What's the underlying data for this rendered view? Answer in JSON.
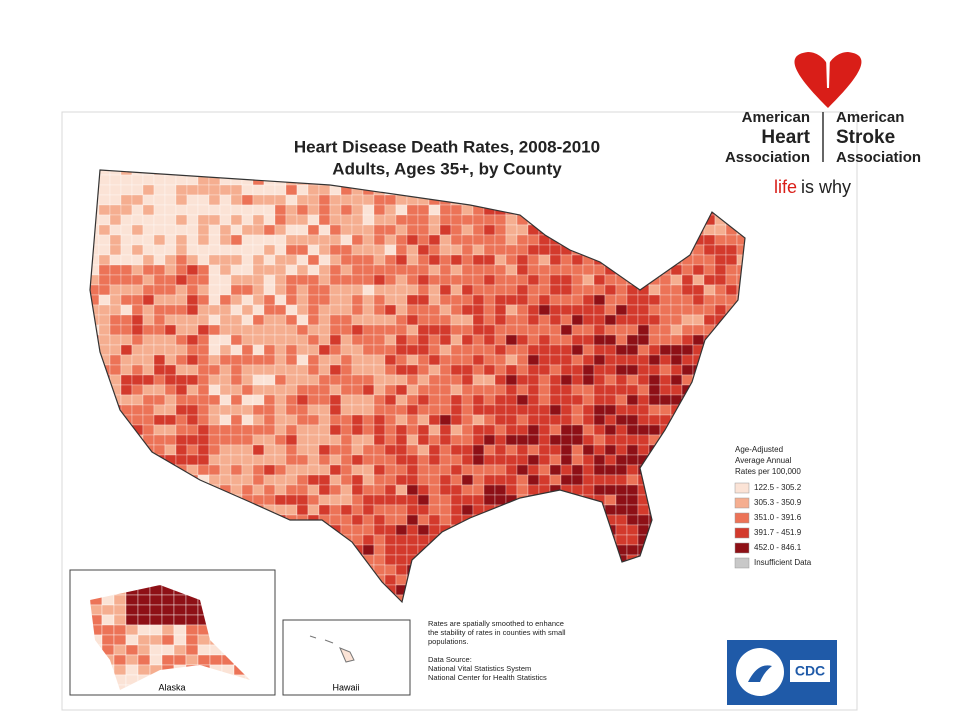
{
  "map": {
    "title": "Heart Disease Death Rates, 2008-2010",
    "subtitle": "Adults, Ages 35+, by County",
    "legend": {
      "title": [
        "Age-Adjusted",
        "Average Annual",
        "Rates per 100,000"
      ],
      "items": [
        {
          "label": "122.5 - 305.2",
          "color": "#fbe3d6"
        },
        {
          "label": "305.3 - 350.9",
          "color": "#f5ae90"
        },
        {
          "label": "351.0 - 391.6",
          "color": "#ec7357"
        },
        {
          "label": "391.7 - 451.9",
          "color": "#d33a2c"
        },
        {
          "label": "452.0 - 846.1",
          "color": "#8e1016"
        },
        {
          "label": "Insufficient Data",
          "color": "#c8c8c8"
        }
      ]
    },
    "insets": [
      "Alaska",
      "Hawaii"
    ],
    "note": [
      "Rates are spatially smoothed to enhance",
      "the stability of rates in counties with small",
      "populations."
    ],
    "source": [
      "Data Source:",
      "National Vital Statistics System",
      "National Center for Health Statistics"
    ],
    "agency": "CDC"
  },
  "logo": {
    "left": [
      "American",
      "Heart",
      "Association"
    ],
    "right": [
      "American",
      "Stroke",
      "Association"
    ],
    "tagline_bold": "life",
    "tagline": "is why"
  }
}
